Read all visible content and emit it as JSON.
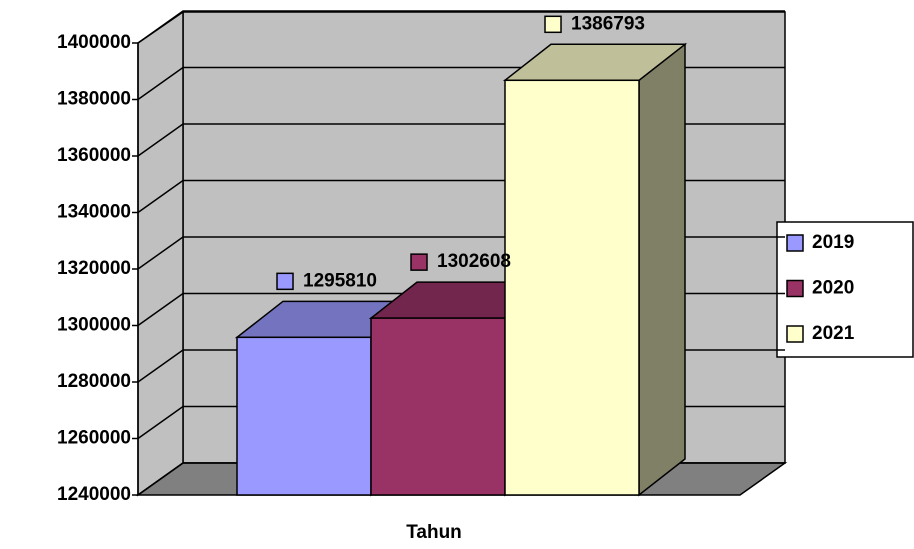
{
  "chart_data": {
    "type": "bar3d",
    "x_label": "Tahun",
    "categories": [
      null
    ],
    "series": [
      {
        "name": "2019",
        "color": "#9999ff",
        "values": [
          1295810
        ]
      },
      {
        "name": "2020",
        "color": "#993366",
        "values": [
          1302608
        ]
      },
      {
        "name": "2021",
        "color": "#ffffcc",
        "values": [
          1386793
        ]
      }
    ],
    "ylim": [
      1240000,
      1400000
    ],
    "yticks": [
      1240000,
      1260000,
      1280000,
      1300000,
      1320000,
      1340000,
      1360000,
      1380000,
      1400000
    ],
    "grid": true,
    "data_labels": true,
    "legend": "right"
  }
}
